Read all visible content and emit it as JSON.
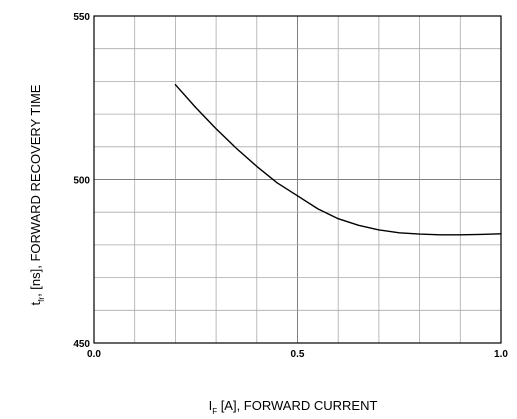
{
  "chart_data": {
    "type": "line",
    "title": "",
    "xlabel": {
      "main": "I",
      "subscript": "F",
      "rest": " [A], FORWARD CURRENT"
    },
    "ylabel": {
      "main": "t",
      "subscript": "fr",
      "rest": ", [ns], FORWARD RECOVERY TIME"
    },
    "xlim": [
      0.0,
      1.0
    ],
    "ylim": [
      450,
      550
    ],
    "x_ticks": [
      "0.0",
      "0.5",
      "1.0"
    ],
    "y_ticks": [
      "450",
      "500",
      "550"
    ],
    "grid": true,
    "legend": "none",
    "series": [
      {
        "x": [
          0.2,
          0.25,
          0.3,
          0.35,
          0.4,
          0.45,
          0.5,
          0.55,
          0.6,
          0.65,
          0.7,
          0.75,
          0.8,
          0.85,
          0.9,
          0.95,
          1.0
        ],
        "y": [
          529,
          522,
          515.5,
          509.5,
          504,
          499,
          495,
          491,
          488,
          486,
          484.6,
          483.7,
          483.3,
          483.1,
          483.1,
          483.2,
          483.4
        ]
      }
    ],
    "colors": {
      "line": "#000000",
      "grid_minor": "#aaaaaa",
      "grid_major": "#7f7f7f",
      "frame": "#000000"
    }
  }
}
